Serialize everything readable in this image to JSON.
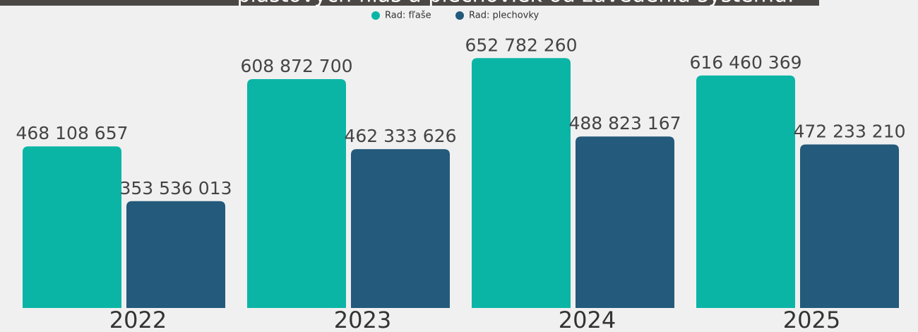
{
  "chart_data": {
    "type": "bar",
    "title": "plastových fliaš a plechoviek od zavedenia systému.",
    "categories": [
      "2022",
      "2023",
      "2024",
      "2025"
    ],
    "series": [
      {
        "name": "Rad: fľaše",
        "color": "#0bb5a6",
        "values": [
          468108657,
          608872700,
          652782260,
          616460369
        ],
        "value_labels": [
          "468 108 657",
          "608 872 700",
          "652 782 260",
          "616 460 369"
        ]
      },
      {
        "name": "Rad: plechovky",
        "color": "#245a7b",
        "values": [
          353536013,
          462333626,
          488823167,
          472233210
        ],
        "value_labels": [
          "353 536 013",
          "462 333 626",
          "488 823 167",
          "472 233 210"
        ]
      }
    ],
    "ylim": [
      130000000,
      770000000
    ]
  }
}
